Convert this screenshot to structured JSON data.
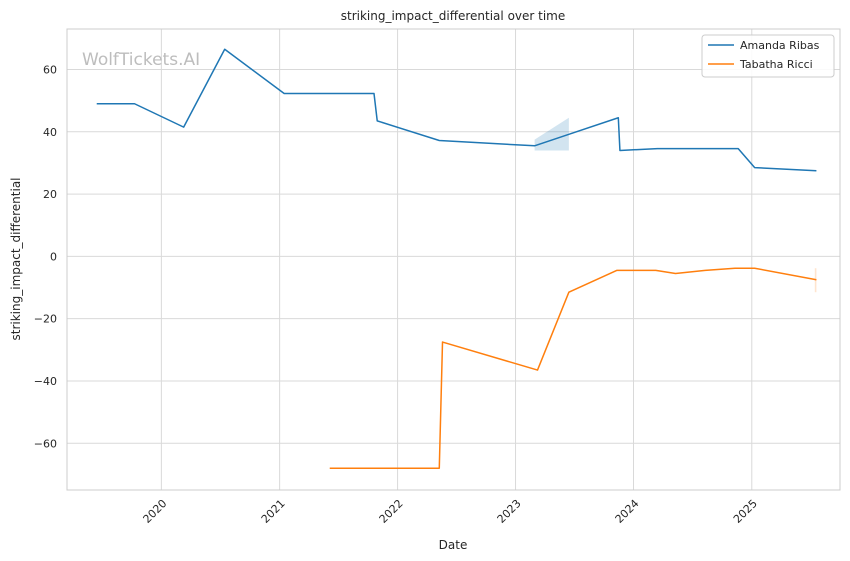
{
  "watermark": "WolfTickets.AI",
  "chart_data": {
    "type": "line",
    "title": "striking_impact_differential over time",
    "xlabel": "Date",
    "ylabel": "striking_impact_differential",
    "x_ticks": [
      "2020",
      "2021",
      "2022",
      "2023",
      "2024",
      "2025"
    ],
    "y_ticks": [
      60,
      40,
      20,
      0,
      -20,
      -40,
      -60
    ],
    "xlim": [
      "2019-03-15",
      "2025-10-01"
    ],
    "ylim": [
      -75,
      73
    ],
    "grid": true,
    "legend_position": "top-right",
    "series": [
      {
        "name": "Amanda Ribas",
        "color": "#1f77b4",
        "points": [
          [
            "2019-06-15",
            49
          ],
          [
            "2019-10-10",
            49
          ],
          [
            "2020-03-10",
            41.5
          ],
          [
            "2020-07-15",
            66.5
          ],
          [
            "2021-01-15",
            52.3
          ],
          [
            "2021-10-20",
            52.3
          ],
          [
            "2021-10-30",
            43.5
          ],
          [
            "2022-05-10",
            37.2
          ],
          [
            "2023-03-01",
            35.5
          ],
          [
            "2023-06-15",
            39.2
          ],
          [
            "2023-11-15",
            44.5
          ],
          [
            "2023-11-20",
            34
          ],
          [
            "2024-03-15",
            34.6
          ],
          [
            "2024-11-20",
            34.6
          ],
          [
            "2025-01-10",
            28.5
          ],
          [
            "2025-07-20",
            27.5
          ]
        ],
        "band": [
          [
            "2023-03-01",
            34,
            37.5
          ],
          [
            "2023-06-15",
            34,
            44.5
          ]
        ]
      },
      {
        "name": "Tabatha Ricci",
        "color": "#ff7f0e",
        "points": [
          [
            "2021-06-05",
            -68
          ],
          [
            "2022-05-10",
            -68
          ],
          [
            "2022-05-20",
            -27.5
          ],
          [
            "2023-03-10",
            -36.5
          ],
          [
            "2023-06-15",
            -11.5
          ],
          [
            "2023-11-10",
            -4.5
          ],
          [
            "2024-03-10",
            -4.5
          ],
          [
            "2024-05-10",
            -5.5
          ],
          [
            "2024-08-10",
            -4.5
          ],
          [
            "2024-11-10",
            -3.8
          ],
          [
            "2025-01-10",
            -3.8
          ],
          [
            "2025-07-20",
            -7.5
          ]
        ],
        "band": [
          [
            "2025-07-15",
            -11.5,
            -3.8
          ],
          [
            "2025-07-20",
            -11.5,
            -3.8
          ]
        ]
      }
    ]
  }
}
